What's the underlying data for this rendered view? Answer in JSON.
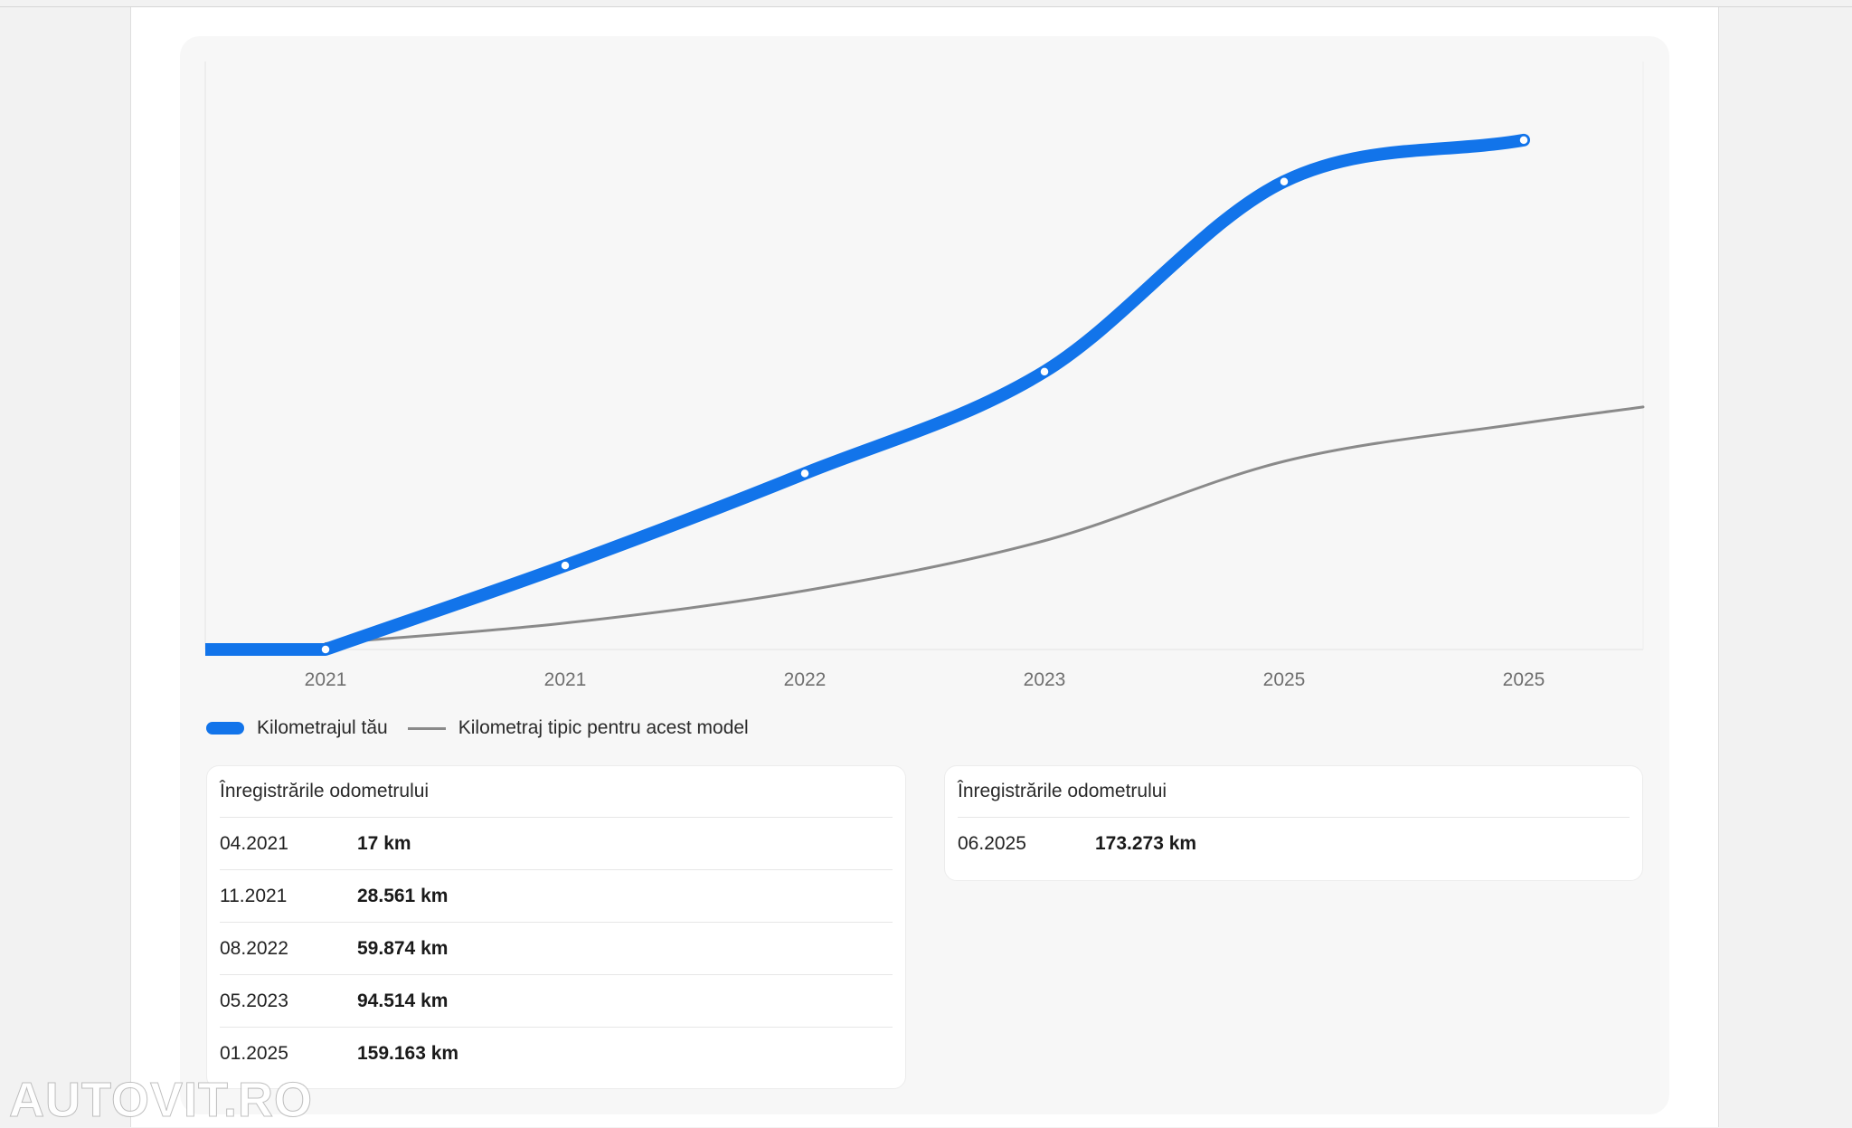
{
  "chart_data": {
    "type": "line",
    "x": [
      "04.2021",
      "11.2021",
      "08.2022",
      "05.2023",
      "01.2025",
      "06.2025"
    ],
    "tick_labels": [
      "2021",
      "2021",
      "2022",
      "2023",
      "2025",
      "2025"
    ],
    "series": [
      {
        "name": "Kilometrajul tău",
        "values": [
          17,
          28561,
          59874,
          94514,
          159163,
          173273
        ],
        "color": "#1274ea"
      },
      {
        "name": "Kilometraj tipic pentru acest model",
        "values": [
          2000,
          9000,
          20000,
          37000,
          64000,
          77000
        ],
        "color": "#8a8a8a"
      }
    ],
    "typical_end_value": 82500,
    "ylim": [
      0,
      200000
    ],
    "grid": false,
    "legend": "bottom-left"
  },
  "tables": [
    {
      "title": "Înregistrările odometrului",
      "rows": [
        {
          "date": "04.2021",
          "km": "17 km"
        },
        {
          "date": "11.2021",
          "km": "28.561 km"
        },
        {
          "date": "08.2022",
          "km": "59.874 km"
        },
        {
          "date": "05.2023",
          "km": "94.514 km"
        },
        {
          "date": "01.2025",
          "km": "159.163 km"
        }
      ]
    },
    {
      "title": "Înregistrările odometrului",
      "rows": [
        {
          "date": "06.2025",
          "km": "173.273 km"
        }
      ]
    }
  ],
  "watermark": "AUTOVIT.RO"
}
